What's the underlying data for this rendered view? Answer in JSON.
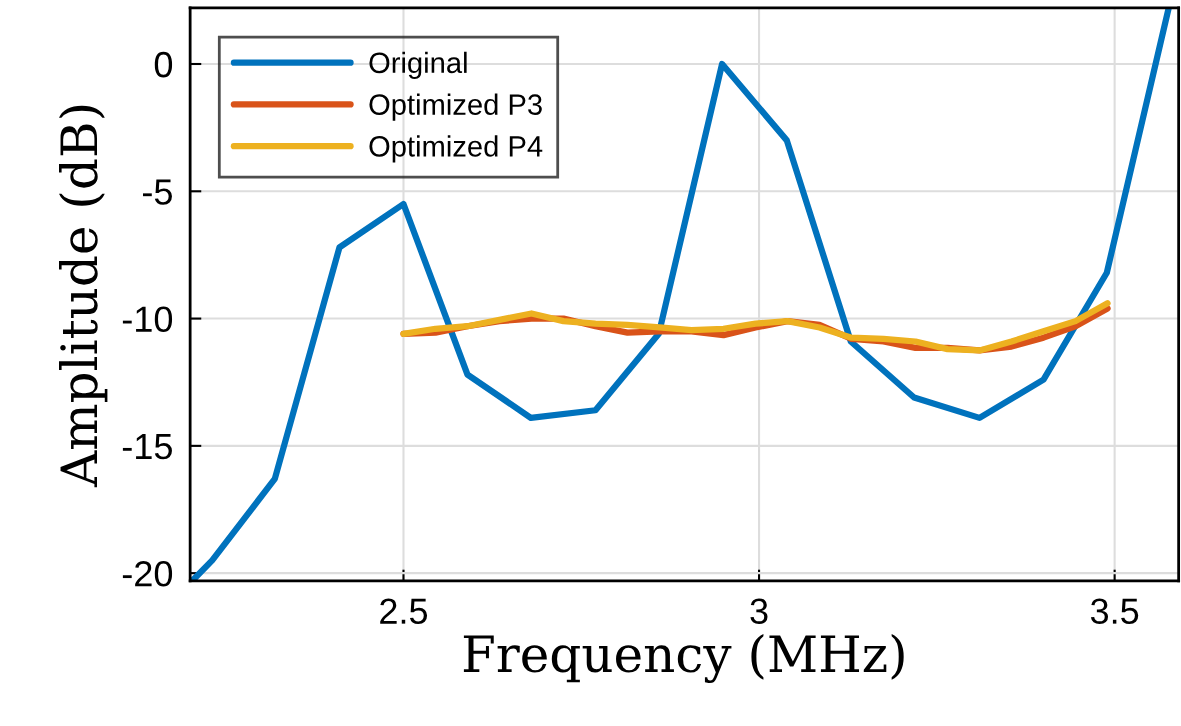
{
  "chart_data": {
    "type": "line",
    "xlabel": "Frequency (MHz)",
    "ylabel": "Amplitude (dB)",
    "xlim": [
      2.2,
      3.59
    ],
    "ylim": [
      -20.3,
      2.2
    ],
    "xticks": [
      2.5,
      3,
      3.5
    ],
    "yticks": [
      -20,
      -15,
      -10,
      -5,
      0
    ],
    "grid": true,
    "legend": "top left",
    "line_style": "solid",
    "marker": "none",
    "series": [
      {
        "name": "Original",
        "color": "#0072bd",
        "x": [
          2.203,
          2.231,
          2.319,
          2.41,
          2.5,
          2.59,
          2.679,
          2.77,
          2.859,
          2.948,
          3.039,
          3.129,
          3.218,
          3.31,
          3.4,
          3.489,
          3.576
        ],
        "values": [
          -20.3,
          -19.5,
          -16.3,
          -7.2,
          -5.5,
          -12.2,
          -13.9,
          -13.6,
          -10.6,
          0,
          -3.0,
          -10.9,
          -13.1,
          -13.9,
          -12.4,
          -8.2,
          2.2
        ]
      },
      {
        "name": "Optimized P3",
        "color": "#d95319",
        "x": [
          2.5,
          2.545,
          2.59,
          2.635,
          2.68,
          2.725,
          2.77,
          2.815,
          2.86,
          2.905,
          2.95,
          2.995,
          3.04,
          3.085,
          3.13,
          3.175,
          3.22,
          3.265,
          3.31,
          3.355,
          3.4,
          3.445,
          3.49
        ],
        "values": [
          -10.6,
          -10.55,
          -10.3,
          -10.1,
          -10.0,
          -10.0,
          -10.3,
          -10.55,
          -10.5,
          -10.5,
          -10.65,
          -10.35,
          -10.1,
          -10.25,
          -10.8,
          -10.9,
          -11.15,
          -11.15,
          -11.25,
          -11.1,
          -10.75,
          -10.3,
          -9.6
        ]
      },
      {
        "name": "Optimized P4",
        "color": "#edb120",
        "x": [
          2.5,
          2.545,
          2.59,
          2.635,
          2.68,
          2.725,
          2.77,
          2.815,
          2.86,
          2.905,
          2.95,
          2.995,
          3.04,
          3.085,
          3.13,
          3.175,
          3.22,
          3.265,
          3.31,
          3.355,
          3.4,
          3.445,
          3.49
        ],
        "values": [
          -10.6,
          -10.4,
          -10.3,
          -10.05,
          -9.8,
          -10.1,
          -10.2,
          -10.25,
          -10.35,
          -10.45,
          -10.4,
          -10.2,
          -10.1,
          -10.35,
          -10.75,
          -10.8,
          -10.9,
          -11.2,
          -11.25,
          -10.9,
          -10.5,
          -10.1,
          -9.4
        ]
      }
    ]
  }
}
